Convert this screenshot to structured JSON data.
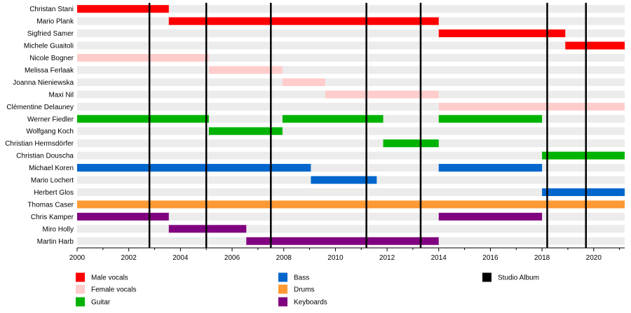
{
  "chart_data": {
    "type": "timeline",
    "title": "",
    "xlabel": "",
    "ylabel": "",
    "xlim": [
      2000,
      2021.2
    ],
    "x_ticks": [
      2000,
      2002,
      2004,
      2006,
      2008,
      2010,
      2012,
      2014,
      2016,
      2018,
      2020
    ],
    "grid": "horizontal row bands",
    "legend_position": "bottom",
    "roles": [
      {
        "key": "male",
        "name": "Male vocals",
        "color": "#ff0000"
      },
      {
        "key": "female",
        "name": "Female vocals",
        "color": "#ffcccc"
      },
      {
        "key": "guitar",
        "name": "Guitar",
        "color": "#00b300"
      },
      {
        "key": "bass",
        "name": "Bass",
        "color": "#0066cc"
      },
      {
        "key": "drums",
        "name": "Drums",
        "color": "#ff9933"
      },
      {
        "key": "keys",
        "name": "Keyboards",
        "color": "#800080"
      }
    ],
    "album_marker": {
      "name": "Studio Album",
      "color": "#000000"
    },
    "albums": [
      2002.8,
      2005.0,
      2007.5,
      2011.2,
      2013.3,
      2018.2,
      2019.7
    ],
    "members": [
      {
        "name": "Christan Stani",
        "role": "male",
        "periods": [
          [
            2000,
            2003.55
          ]
        ]
      },
      {
        "name": "Mario Plank",
        "role": "male",
        "periods": [
          [
            2003.55,
            2014.0
          ]
        ]
      },
      {
        "name": "Sigfried Samer",
        "role": "male",
        "periods": [
          [
            2014.0,
            2018.9
          ]
        ]
      },
      {
        "name": "Michele Guaitoli",
        "role": "male",
        "periods": [
          [
            2018.9,
            2021.2
          ]
        ]
      },
      {
        "name": "Nicole Bogner",
        "role": "female",
        "periods": [
          [
            2000,
            2005.1
          ]
        ]
      },
      {
        "name": "Melissa Ferlaak",
        "role": "female",
        "periods": [
          [
            2005.1,
            2007.95
          ]
        ]
      },
      {
        "name": "Joanna Nieniewska",
        "role": "female",
        "periods": [
          [
            2007.95,
            2009.6
          ]
        ]
      },
      {
        "name": "Maxi Nil",
        "role": "female",
        "periods": [
          [
            2009.6,
            2014.0
          ]
        ]
      },
      {
        "name": "Clémentine Delauney",
        "role": "female",
        "periods": [
          [
            2014.0,
            2021.2
          ]
        ]
      },
      {
        "name": "Werner Fiedler",
        "role": "guitar",
        "periods": [
          [
            2000,
            2005.1
          ],
          [
            2007.95,
            2011.85
          ],
          [
            2014.0,
            2018.0
          ]
        ]
      },
      {
        "name": "Wolfgang Koch",
        "role": "guitar",
        "periods": [
          [
            2005.1,
            2007.95
          ]
        ]
      },
      {
        "name": "Christian Hermsdörfer",
        "role": "guitar",
        "periods": [
          [
            2011.85,
            2014.0
          ]
        ]
      },
      {
        "name": "Christian Douscha",
        "role": "guitar",
        "periods": [
          [
            2018.0,
            2021.2
          ]
        ]
      },
      {
        "name": "Michael Koren",
        "role": "bass",
        "periods": [
          [
            2000,
            2009.05
          ],
          [
            2014.0,
            2018.0
          ]
        ]
      },
      {
        "name": "Mario Lochert",
        "role": "bass",
        "periods": [
          [
            2009.05,
            2011.6
          ]
        ]
      },
      {
        "name": "Herbert Glos",
        "role": "bass",
        "periods": [
          [
            2018.0,
            2021.2
          ]
        ]
      },
      {
        "name": "Thomas Caser",
        "role": "drums",
        "periods": [
          [
            2000,
            2021.2
          ]
        ]
      },
      {
        "name": "Chris Kamper",
        "role": "keys",
        "periods": [
          [
            2000,
            2003.55
          ],
          [
            2014.0,
            2018.0
          ]
        ]
      },
      {
        "name": "Miro Holly",
        "role": "keys",
        "periods": [
          [
            2003.55,
            2006.55
          ]
        ]
      },
      {
        "name": "Martin Harb",
        "role": "keys",
        "periods": [
          [
            2006.55,
            2014.0
          ]
        ]
      }
    ]
  }
}
